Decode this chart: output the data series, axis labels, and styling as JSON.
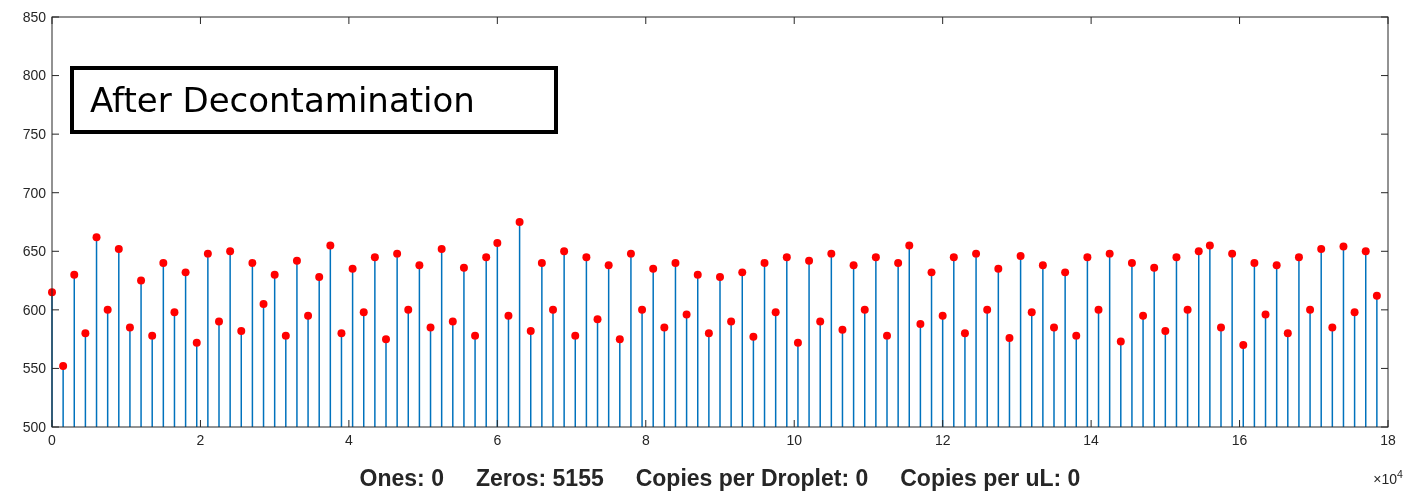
{
  "chart_data": {
    "type": "lollipop",
    "xlabel": "Ones: 0     Zeros: 5155     Copies per Droplet: 0     Copies per uL: 0",
    "annotations": [
      "After Decontamination",
      "×10$^{4}$"
    ],
    "xlim": [
      0,
      18
    ],
    "xticks": [
      0,
      2,
      4,
      6,
      8,
      10,
      12,
      14,
      16,
      18
    ],
    "ylim": [
      500,
      850
    ],
    "yticks": [
      500,
      550,
      600,
      650,
      700,
      750,
      800,
      850
    ],
    "grid": false,
    "marker": "circle",
    "x": [
      0,
      0.15,
      0.3,
      0.45,
      0.6,
      0.75,
      0.9,
      1.05,
      1.2,
      1.35,
      1.5,
      1.65,
      1.8,
      1.95,
      2.1,
      2.25,
      2.4,
      2.55,
      2.7,
      2.85,
      3,
      3.15,
      3.3,
      3.45,
      3.6,
      3.75,
      3.9,
      4.05,
      4.2,
      4.35,
      4.5,
      4.65,
      4.8,
      4.95,
      5.1,
      5.25,
      5.4,
      5.55,
      5.7,
      5.85,
      6,
      6.15,
      6.3,
      6.45,
      6.6,
      6.75,
      6.9,
      7.05,
      7.2,
      7.35,
      7.5,
      7.65,
      7.8,
      7.95,
      8.1,
      8.25,
      8.4,
      8.55,
      8.7,
      8.85,
      9,
      9.15,
      9.3,
      9.45,
      9.6,
      9.75,
      9.9,
      10.05,
      10.2,
      10.35,
      10.5,
      10.65,
      10.8,
      10.95,
      11.1,
      11.25,
      11.4,
      11.55,
      11.7,
      11.85,
      12,
      12.15,
      12.3,
      12.45,
      12.6,
      12.75,
      12.9,
      13.05,
      13.2,
      13.35,
      13.5,
      13.65,
      13.8,
      13.95,
      14.1,
      14.25,
      14.4,
      14.55,
      14.7,
      14.85,
      15,
      15.15,
      15.3,
      15.45,
      15.6,
      15.75,
      15.9,
      16.05,
      16.2,
      16.35,
      16.5,
      16.65,
      16.8,
      16.95,
      17.1,
      17.25,
      17.4,
      17.55,
      17.7,
      17.85
    ],
    "series": [
      {
        "color": "#ff0000",
        "values": [
          615,
          552,
          630,
          580,
          662,
          600,
          652,
          585,
          625,
          578,
          640,
          598,
          632,
          572,
          648,
          590,
          650,
          582,
          640,
          605,
          630,
          578,
          642,
          595,
          628,
          655,
          580,
          635,
          598,
          645,
          575,
          648,
          600,
          638,
          585,
          652,
          590,
          636,
          578,
          645,
          657,
          595,
          675,
          582,
          640,
          600,
          650,
          578,
          645,
          592,
          638,
          575,
          648,
          600,
          635,
          585,
          640,
          596,
          630,
          580,
          628,
          590,
          632,
          577,
          640,
          598,
          645,
          572,
          642,
          590,
          648,
          583,
          638,
          600,
          645,
          578,
          640,
          655,
          588,
          632,
          595,
          645,
          580,
          648,
          600,
          635,
          576,
          646,
          598,
          638,
          585,
          632,
          578,
          645,
          600,
          648,
          573,
          640,
          595,
          636,
          582,
          645,
          600,
          650,
          655,
          585,
          648,
          570,
          640,
          596,
          638,
          580,
          645,
          600,
          652,
          585,
          654,
          598,
          650,
          612
        ]
      }
    ]
  }
}
